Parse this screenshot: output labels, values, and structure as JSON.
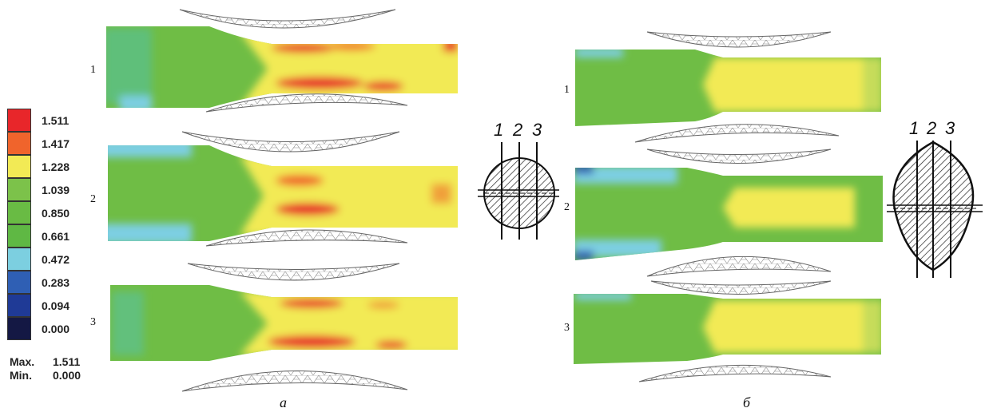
{
  "legend": {
    "values": [
      "1.511",
      "1.417",
      "1.228",
      "1.039",
      "0.850",
      "0.661",
      "0.472",
      "0.283",
      "0.094",
      "0.000"
    ],
    "colors": [
      "#e8262a",
      "#f0642c",
      "#f2ea55",
      "#7cc24a",
      "#69bb44",
      "#5fb844",
      "#7ccfe0",
      "#2f5fb4",
      "#1f3a96",
      "#141844"
    ],
    "max_label": "Max.",
    "max_value": "1.511",
    "min_label": "Min.",
    "min_value": "0.000"
  },
  "panel_a": {
    "label": "а",
    "row_labels": [
      "1",
      "2",
      "3"
    ],
    "section_numbers": [
      "1",
      "2",
      "3"
    ]
  },
  "panel_b": {
    "label": "б",
    "row_labels": [
      "1",
      "2",
      "3"
    ],
    "section_numbers": [
      "1",
      "2",
      "3"
    ]
  }
}
